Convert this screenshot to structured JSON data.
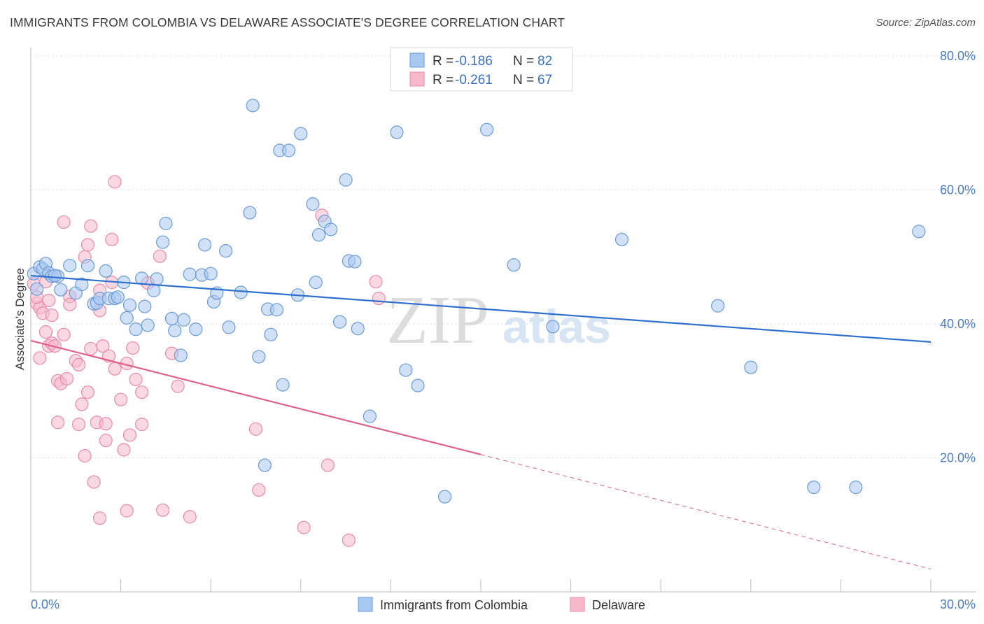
{
  "title": "IMMIGRANTS FROM COLOMBIA VS DELAWARE ASSOCIATE'S DEGREE CORRELATION CHART",
  "source": "Source: ZipAtlas.com",
  "watermark": {
    "zip": "ZIP",
    "atlas": "atlas"
  },
  "colors": {
    "blue_fill": "#a9c8f0",
    "blue_stroke": "#6a9ad8",
    "blue_line": "#2f6fce",
    "pink_fill": "#f6b8cb",
    "pink_stroke": "#ea8aa8",
    "pink_line": "#e0608a",
    "tick_text": "#4a7cc7",
    "grid": "#e3e3e3"
  },
  "legend": {
    "r_label": "R =",
    "n_label": "N =",
    "series": [
      {
        "r": "-0.186",
        "n": "82"
      },
      {
        "r": "-0.261",
        "n": "67"
      }
    ]
  },
  "bottom_legend": [
    "Immigrants from Colombia",
    "Delaware"
  ],
  "chart_data": {
    "type": "scatter",
    "title": "IMMIGRANTS FROM COLOMBIA VS DELAWARE ASSOCIATE'S DEGREE CORRELATION CHART",
    "xlabel": "",
    "ylabel": "Associate's Degree",
    "xlim": [
      0,
      30
    ],
    "ylim": [
      0,
      80
    ],
    "x_tick_labels": [
      "0.0%",
      "30.0%"
    ],
    "y_tick_labels": [
      "20.0%",
      "40.0%",
      "60.0%",
      "80.0%"
    ],
    "y_ticks": [
      20,
      40,
      60,
      80
    ],
    "series": [
      {
        "name": "Immigrants from Colombia",
        "r": -0.186,
        "n": 82,
        "trend": {
          "x0": 0,
          "y0": 47.2,
          "x1": 30,
          "y1": 37.3
        },
        "points": [
          [
            0.1,
            47.5
          ],
          [
            0.3,
            48.5
          ],
          [
            0.4,
            48.2
          ],
          [
            0.5,
            49.0
          ],
          [
            0.6,
            47.6
          ],
          [
            0.7,
            47.1
          ],
          [
            0.9,
            47.1
          ],
          [
            0.8,
            47.2
          ],
          [
            1.3,
            48.7
          ],
          [
            1.0,
            45.1
          ],
          [
            1.5,
            44.6
          ],
          [
            1.7,
            45.9
          ],
          [
            1.9,
            48.7
          ],
          [
            2.1,
            43.0
          ],
          [
            2.2,
            43.1
          ],
          [
            2.3,
            43.8
          ],
          [
            2.5,
            47.9
          ],
          [
            2.6,
            43.8
          ],
          [
            2.8,
            43.8
          ],
          [
            2.9,
            44.0
          ],
          [
            3.1,
            46.2
          ],
          [
            3.2,
            40.9
          ],
          [
            3.3,
            42.8
          ],
          [
            3.5,
            39.2
          ],
          [
            3.7,
            46.8
          ],
          [
            3.8,
            42.6
          ],
          [
            3.9,
            39.8
          ],
          [
            4.1,
            45.0
          ],
          [
            4.2,
            46.7
          ],
          [
            4.4,
            52.2
          ],
          [
            4.5,
            55.0
          ],
          [
            4.7,
            40.8
          ],
          [
            4.8,
            39.0
          ],
          [
            5.0,
            35.3
          ],
          [
            5.1,
            40.6
          ],
          [
            5.3,
            47.4
          ],
          [
            5.5,
            39.2
          ],
          [
            5.7,
            47.3
          ],
          [
            5.8,
            51.8
          ],
          [
            6.0,
            47.5
          ],
          [
            6.1,
            43.3
          ],
          [
            6.2,
            44.6
          ],
          [
            6.5,
            50.9
          ],
          [
            6.6,
            39.5
          ],
          [
            7.0,
            44.7
          ],
          [
            7.3,
            56.6
          ],
          [
            7.4,
            72.6
          ],
          [
            7.6,
            35.1
          ],
          [
            7.8,
            18.9
          ],
          [
            7.9,
            42.2
          ],
          [
            8.0,
            38.4
          ],
          [
            8.2,
            42.1
          ],
          [
            8.3,
            65.9
          ],
          [
            8.4,
            30.9
          ],
          [
            8.6,
            65.9
          ],
          [
            8.9,
            44.3
          ],
          [
            9.0,
            68.4
          ],
          [
            9.4,
            57.9
          ],
          [
            9.5,
            46.2
          ],
          [
            9.6,
            53.3
          ],
          [
            9.8,
            55.3
          ],
          [
            10.0,
            54.1
          ],
          [
            10.3,
            40.3
          ],
          [
            10.5,
            61.5
          ],
          [
            10.6,
            49.4
          ],
          [
            10.8,
            49.3
          ],
          [
            10.9,
            39.3
          ],
          [
            11.3,
            26.2
          ],
          [
            12.2,
            68.6
          ],
          [
            12.5,
            33.1
          ],
          [
            12.9,
            30.8
          ],
          [
            13.8,
            14.2
          ],
          [
            15.2,
            69.0
          ],
          [
            16.1,
            48.8
          ],
          [
            17.4,
            39.6
          ],
          [
            19.7,
            52.6
          ],
          [
            22.9,
            42.7
          ],
          [
            24.0,
            33.5
          ],
          [
            26.1,
            15.6
          ],
          [
            27.5,
            15.6
          ],
          [
            29.6,
            53.8
          ],
          [
            0.2,
            45.2
          ]
        ]
      },
      {
        "name": "Delaware",
        "r": -0.261,
        "n": 67,
        "trend": {
          "x0": 0,
          "y0": 37.5,
          "x1": 15.0,
          "y1": 20.5
        },
        "trend_dashed": {
          "x0": 15.0,
          "y0": 20.5,
          "x1": 30,
          "y1": 3.4
        },
        "points": [
          [
            0.1,
            46.0
          ],
          [
            0.2,
            43.1
          ],
          [
            0.3,
            42.4
          ],
          [
            0.3,
            34.9
          ],
          [
            0.4,
            41.6
          ],
          [
            0.5,
            38.8
          ],
          [
            0.5,
            46.3
          ],
          [
            0.6,
            36.7
          ],
          [
            0.7,
            41.3
          ],
          [
            0.7,
            37.1
          ],
          [
            0.8,
            36.7
          ],
          [
            0.9,
            31.5
          ],
          [
            0.9,
            25.3
          ],
          [
            1.0,
            31.1
          ],
          [
            1.1,
            55.2
          ],
          [
            1.1,
            38.4
          ],
          [
            1.2,
            31.8
          ],
          [
            1.3,
            44.1
          ],
          [
            1.3,
            42.9
          ],
          [
            1.5,
            34.5
          ],
          [
            1.6,
            25.0
          ],
          [
            1.6,
            33.9
          ],
          [
            1.7,
            28.0
          ],
          [
            1.8,
            20.3
          ],
          [
            1.8,
            50.0
          ],
          [
            1.9,
            51.8
          ],
          [
            1.9,
            29.8
          ],
          [
            2.0,
            54.6
          ],
          [
            2.0,
            36.3
          ],
          [
            2.1,
            16.4
          ],
          [
            2.2,
            25.3
          ],
          [
            2.3,
            11.0
          ],
          [
            2.3,
            45.0
          ],
          [
            2.4,
            36.7
          ],
          [
            2.5,
            25.1
          ],
          [
            2.5,
            22.6
          ],
          [
            2.6,
            35.2
          ],
          [
            2.7,
            52.6
          ],
          [
            2.7,
            46.2
          ],
          [
            2.8,
            61.2
          ],
          [
            2.8,
            33.3
          ],
          [
            3.0,
            28.7
          ],
          [
            3.1,
            21.2
          ],
          [
            3.2,
            12.1
          ],
          [
            3.2,
            34.1
          ],
          [
            3.3,
            23.4
          ],
          [
            3.4,
            36.4
          ],
          [
            3.5,
            31.7
          ],
          [
            3.7,
            25.0
          ],
          [
            3.7,
            29.8
          ],
          [
            3.9,
            46.1
          ],
          [
            4.3,
            50.1
          ],
          [
            4.4,
            12.2
          ],
          [
            4.7,
            35.6
          ],
          [
            4.9,
            30.7
          ],
          [
            5.3,
            11.2
          ],
          [
            7.5,
            24.3
          ],
          [
            7.6,
            15.2
          ],
          [
            9.1,
            9.6
          ],
          [
            9.7,
            56.2
          ],
          [
            9.9,
            18.9
          ],
          [
            10.6,
            7.7
          ],
          [
            11.5,
            46.3
          ],
          [
            11.6,
            43.8
          ],
          [
            0.2,
            44.0
          ],
          [
            0.6,
            43.5
          ],
          [
            2.3,
            42.0
          ]
        ]
      }
    ]
  }
}
